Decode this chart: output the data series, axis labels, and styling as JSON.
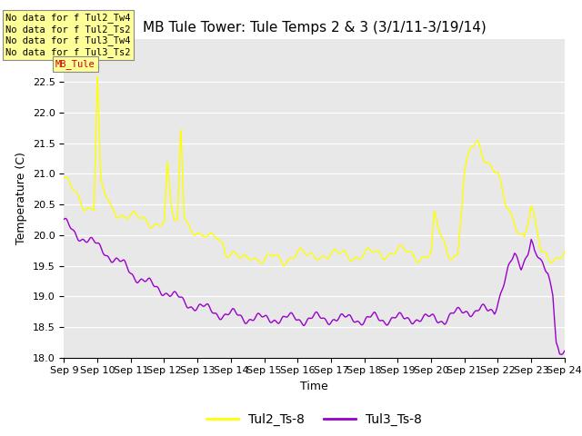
{
  "title": "MB Tule Tower: Tule Temps 2 & 3 (3/1/11-3/19/14)",
  "xlabel": "Time",
  "ylabel": "Temperature (C)",
  "ylim": [
    18.0,
    23.2
  ],
  "yticks": [
    18.0,
    18.5,
    19.0,
    19.5,
    20.0,
    20.5,
    21.0,
    21.5,
    22.0,
    22.5
  ],
  "bg_color": "#e8e8e8",
  "line1_color": "#ffff00",
  "line2_color": "#9900cc",
  "legend_labels": [
    "Tul2_Ts-8",
    "Tul3_Ts-8"
  ],
  "corner_lines": [
    "No data for f Tul2_Tw4",
    "No data for f Tul2_Ts2",
    "No data for f Tul3_Tw4",
    "No data for f Tul3_Ts2"
  ],
  "corner_box_color": "#ffff99",
  "corner_overlap_text": "MB_Tule",
  "corner_overlap_color": "#cc0000",
  "x_tick_labels": [
    "Sep 9",
    "Sep 10",
    "Sep 11",
    "Sep 12",
    "Sep 13",
    "Sep 14",
    "Sep 15",
    "Sep 16",
    "Sep 17",
    "Sep 18",
    "Sep 19",
    "Sep 20",
    "Sep 21",
    "Sep 22",
    "Sep 23",
    "Sep 24"
  ],
  "title_fontsize": 11,
  "axis_fontsize": 9,
  "tick_fontsize": 8
}
